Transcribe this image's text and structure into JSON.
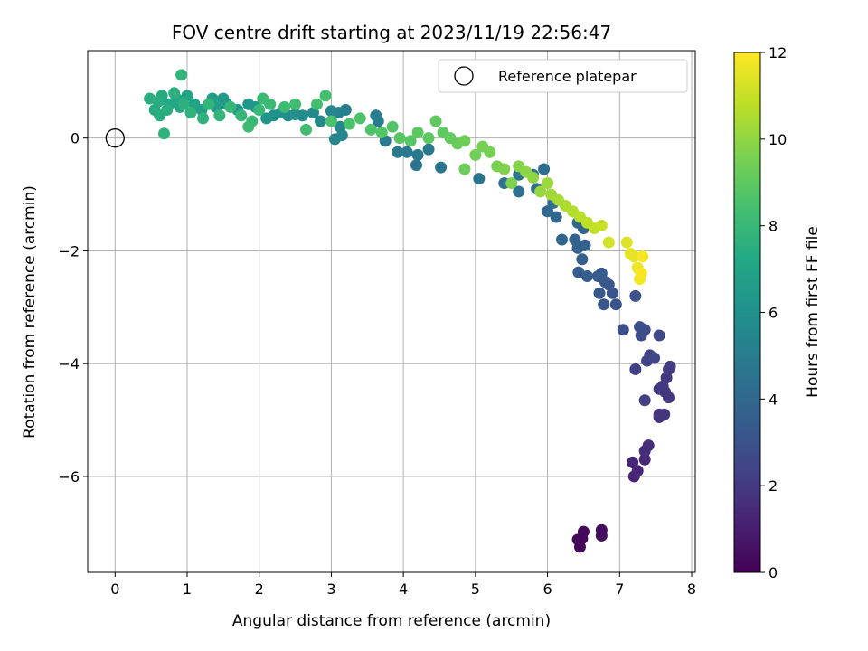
{
  "chart_data": {
    "type": "scatter",
    "title": "FOV centre drift starting at 2023/11/19 22:56:47",
    "xlabel": "Angular distance from reference (arcmin)",
    "ylabel": "Rotation from reference (arcmin)",
    "xlim": [
      -0.38,
      8.05
    ],
    "ylim": [
      -7.7,
      1.55
    ],
    "xticks": [
      0,
      1,
      2,
      3,
      4,
      5,
      6,
      7,
      8
    ],
    "yticks": [
      0,
      -2,
      -4,
      -6
    ],
    "grid": true,
    "legend": {
      "placement": "top-right",
      "entries": [
        "Reference platepar"
      ]
    },
    "reference_point": {
      "x": 0,
      "y": 0
    },
    "colorbar": {
      "label": "Hours from first FF file",
      "range": [
        0,
        12
      ],
      "ticks": [
        0,
        2,
        4,
        6,
        8,
        10,
        12
      ],
      "colormap": "viridis"
    },
    "points": [
      [
        6.45,
        -7.25,
        0.2
      ],
      [
        6.48,
        -7.1,
        0.3
      ],
      [
        6.5,
        -6.98,
        0.3
      ],
      [
        6.75,
        -6.95,
        0.4
      ],
      [
        6.75,
        -7.05,
        0.4
      ],
      [
        6.42,
        -7.12,
        0.2
      ],
      [
        7.2,
        -6.0,
        1.2
      ],
      [
        7.25,
        -5.9,
        1.3
      ],
      [
        7.18,
        -5.75,
        1.3
      ],
      [
        7.35,
        -5.7,
        1.4
      ],
      [
        7.35,
        -5.55,
        1.5
      ],
      [
        7.4,
        -5.45,
        1.5
      ],
      [
        7.55,
        -4.95,
        1.7
      ],
      [
        7.62,
        -4.9,
        1.8
      ],
      [
        7.55,
        -4.9,
        1.8
      ],
      [
        7.68,
        -4.6,
        1.9
      ],
      [
        7.63,
        -4.5,
        1.9
      ],
      [
        7.6,
        -4.4,
        2.0
      ],
      [
        7.65,
        -4.25,
        2.0
      ],
      [
        7.68,
        -4.1,
        2.1
      ],
      [
        7.7,
        -4.05,
        2.1
      ],
      [
        7.55,
        -4.45,
        2.0
      ],
      [
        7.35,
        -4.65,
        2.2
      ],
      [
        7.22,
        -4.1,
        2.3
      ],
      [
        7.42,
        -3.85,
        2.4
      ],
      [
        7.48,
        -3.9,
        2.4
      ],
      [
        7.38,
        -3.95,
        2.5
      ],
      [
        7.55,
        -3.5,
        2.6
      ],
      [
        7.35,
        -3.4,
        2.7
      ],
      [
        7.3,
        -3.5,
        2.8
      ],
      [
        7.28,
        -3.35,
        2.8
      ],
      [
        7.05,
        -3.4,
        2.9
      ],
      [
        7.22,
        -2.8,
        3.0
      ],
      [
        6.95,
        -2.95,
        3.1
      ],
      [
        6.9,
        -2.75,
        3.1
      ],
      [
        6.85,
        -2.6,
        3.2
      ],
      [
        6.78,
        -2.95,
        3.2
      ],
      [
        6.72,
        -2.75,
        3.3
      ],
      [
        6.8,
        -2.55,
        3.3
      ],
      [
        6.75,
        -2.4,
        3.4
      ],
      [
        6.7,
        -2.45,
        3.4
      ],
      [
        6.55,
        -2.45,
        3.5
      ],
      [
        6.43,
        -2.38,
        3.5
      ],
      [
        6.48,
        -2.15,
        3.6
      ],
      [
        6.52,
        -1.9,
        3.7
      ],
      [
        6.42,
        -1.95,
        3.7
      ],
      [
        6.38,
        -1.8,
        3.8
      ],
      [
        6.2,
        -1.8,
        3.9
      ],
      [
        6.5,
        -1.6,
        3.9
      ],
      [
        6.42,
        -1.5,
        4.0
      ],
      [
        6.12,
        -1.4,
        4.0
      ],
      [
        6.0,
        -1.3,
        4.1
      ],
      [
        6.08,
        -1.15,
        4.2
      ],
      [
        5.85,
        -0.9,
        4.3
      ],
      [
        5.95,
        -0.55,
        4.3
      ],
      [
        5.8,
        -0.65,
        4.4
      ],
      [
        5.6,
        -0.95,
        4.4
      ],
      [
        5.6,
        -0.65,
        4.5
      ],
      [
        5.4,
        -0.8,
        4.5
      ],
      [
        5.05,
        -0.72,
        4.6
      ],
      [
        4.52,
        -0.52,
        4.7
      ],
      [
        4.18,
        -0.48,
        4.7
      ],
      [
        4.35,
        -0.2,
        4.8
      ],
      [
        4.05,
        -0.25,
        4.8
      ],
      [
        4.2,
        -0.3,
        4.8
      ],
      [
        3.92,
        -0.25,
        4.9
      ],
      [
        3.75,
        -0.05,
        5.0
      ],
      [
        3.65,
        0.3,
        5.0
      ],
      [
        3.62,
        0.4,
        5.1
      ],
      [
        3.2,
        0.5,
        5.2
      ],
      [
        3.1,
        0.45,
        5.3
      ],
      [
        3.0,
        0.48,
        5.4
      ],
      [
        3.12,
        0.2,
        5.4
      ],
      [
        3.15,
        0.05,
        5.5
      ],
      [
        3.05,
        -0.02,
        5.5
      ],
      [
        2.85,
        0.3,
        5.6
      ],
      [
        2.75,
        0.45,
        5.7
      ],
      [
        2.6,
        0.4,
        5.8
      ],
      [
        2.5,
        0.42,
        5.8
      ],
      [
        2.4,
        0.4,
        5.9
      ],
      [
        2.3,
        0.45,
        6.0
      ],
      [
        2.2,
        0.4,
        6.1
      ],
      [
        2.1,
        0.35,
        6.2
      ],
      [
        1.95,
        0.55,
        6.2
      ],
      [
        1.85,
        0.6,
        6.3
      ],
      [
        1.7,
        0.5,
        6.4
      ],
      [
        1.55,
        0.6,
        6.5
      ],
      [
        1.5,
        0.7,
        6.5
      ],
      [
        1.4,
        0.55,
        6.6
      ],
      [
        1.35,
        0.7,
        6.7
      ],
      [
        1.2,
        0.5,
        6.8
      ],
      [
        1.1,
        0.6,
        6.9
      ],
      [
        1.0,
        0.75,
        7.0
      ],
      [
        0.9,
        0.55,
        7.0
      ],
      [
        0.85,
        0.7,
        7.1
      ],
      [
        0.75,
        0.6,
        7.2
      ],
      [
        0.65,
        0.75,
        7.3
      ],
      [
        0.55,
        0.5,
        7.3
      ],
      [
        0.62,
        0.4,
        7.4
      ],
      [
        0.6,
        0.65,
        7.4
      ],
      [
        0.48,
        0.7,
        7.5
      ],
      [
        0.72,
        0.5,
        7.5
      ],
      [
        0.82,
        0.8,
        7.6
      ],
      [
        0.95,
        0.6,
        7.6
      ],
      [
        1.05,
        0.45,
        7.7
      ],
      [
        1.22,
        0.35,
        7.7
      ],
      [
        1.3,
        0.6,
        7.8
      ],
      [
        1.45,
        0.4,
        7.8
      ],
      [
        0.68,
        0.08,
        7.7
      ],
      [
        0.92,
        1.12,
        7.8
      ],
      [
        1.6,
        0.55,
        7.9
      ],
      [
        1.75,
        0.4,
        7.9
      ],
      [
        1.9,
        0.3,
        8.0
      ],
      [
        2.0,
        0.5,
        8.0
      ],
      [
        2.15,
        0.6,
        8.1
      ],
      [
        2.05,
        0.7,
        8.1
      ],
      [
        1.85,
        0.2,
        8.2
      ],
      [
        2.35,
        0.55,
        8.2
      ],
      [
        2.5,
        0.6,
        8.3
      ],
      [
        2.65,
        0.15,
        8.3
      ],
      [
        2.8,
        0.6,
        8.4
      ],
      [
        2.92,
        0.75,
        8.4
      ],
      [
        3.0,
        0.3,
        8.5
      ],
      [
        3.25,
        0.25,
        8.5
      ],
      [
        3.4,
        0.35,
        8.6
      ],
      [
        3.55,
        0.15,
        8.6
      ],
      [
        3.7,
        0.1,
        8.7
      ],
      [
        3.85,
        0.2,
        8.7
      ],
      [
        3.95,
        0.0,
        8.8
      ],
      [
        4.1,
        -0.05,
        8.8
      ],
      [
        4.2,
        0.1,
        8.9
      ],
      [
        4.35,
        0.0,
        8.9
      ],
      [
        4.45,
        0.3,
        9.0
      ],
      [
        4.55,
        0.1,
        9.0
      ],
      [
        4.65,
        0.0,
        9.1
      ],
      [
        4.75,
        -0.1,
        9.2
      ],
      [
        4.85,
        -0.05,
        9.3
      ],
      [
        4.85,
        -0.55,
        9.3
      ],
      [
        5.0,
        -0.3,
        9.4
      ],
      [
        5.1,
        -0.15,
        9.5
      ],
      [
        5.2,
        -0.25,
        9.5
      ],
      [
        5.3,
        -0.5,
        9.6
      ],
      [
        5.4,
        -0.55,
        9.7
      ],
      [
        5.5,
        -0.8,
        9.7
      ],
      [
        5.6,
        -0.5,
        9.8
      ],
      [
        5.7,
        -0.6,
        9.9
      ],
      [
        5.8,
        -0.7,
        10.0
      ],
      [
        5.9,
        -0.95,
        10.1
      ],
      [
        6.0,
        -0.8,
        10.2
      ],
      [
        6.05,
        -1.0,
        10.3
      ],
      [
        6.15,
        -1.1,
        10.4
      ],
      [
        6.25,
        -1.2,
        10.5
      ],
      [
        6.35,
        -1.3,
        10.6
      ],
      [
        6.45,
        -1.4,
        10.7
      ],
      [
        6.55,
        -1.5,
        10.8
      ],
      [
        6.65,
        -1.6,
        10.9
      ],
      [
        6.75,
        -1.55,
        11.0
      ],
      [
        6.85,
        -1.85,
        11.2
      ],
      [
        7.1,
        -1.85,
        11.4
      ],
      [
        7.15,
        -2.05,
        11.5
      ],
      [
        7.2,
        -2.1,
        11.6
      ],
      [
        7.25,
        -2.3,
        11.7
      ],
      [
        7.28,
        -2.5,
        11.8
      ],
      [
        7.3,
        -2.4,
        11.9
      ],
      [
        7.32,
        -2.1,
        11.9
      ]
    ]
  }
}
